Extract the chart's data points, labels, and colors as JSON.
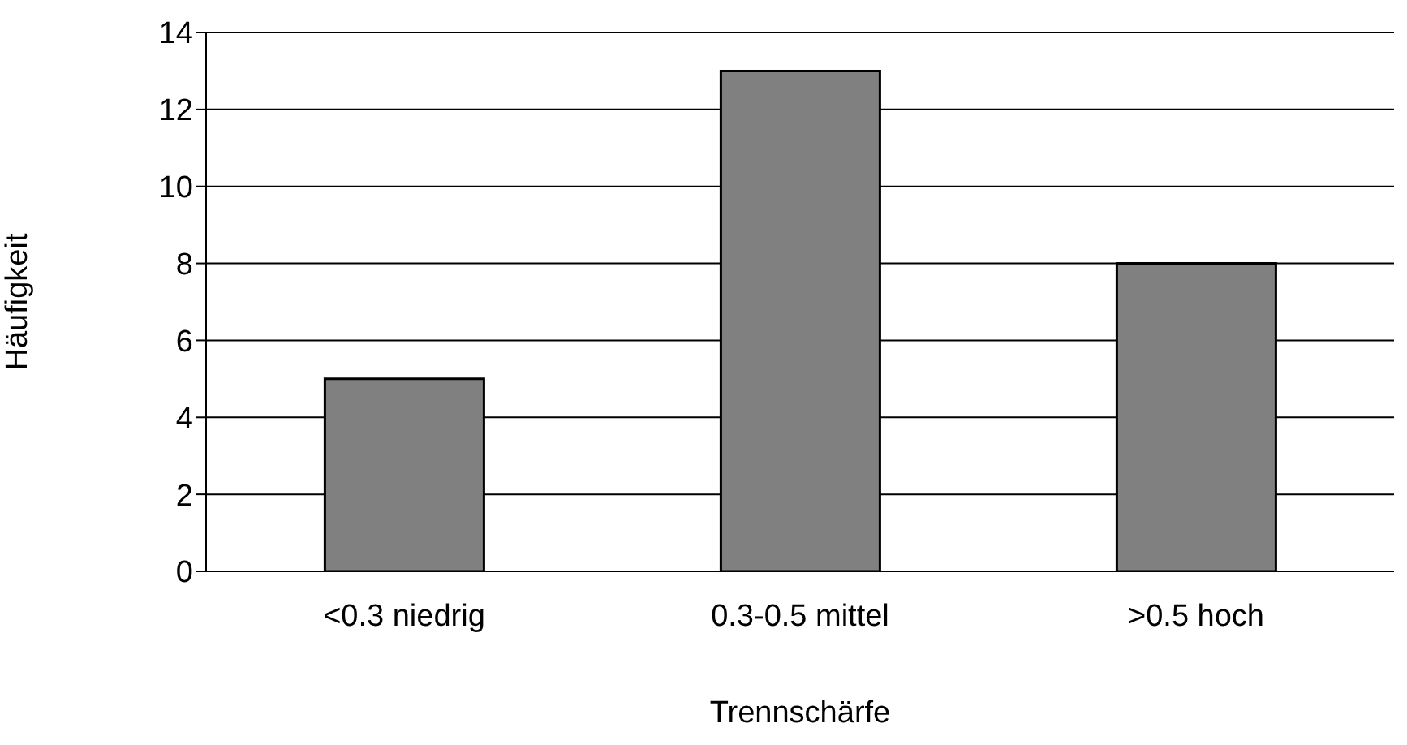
{
  "chart_data": {
    "type": "bar",
    "xlabel": "Trennschärfe",
    "ylabel": "Häufigkeit",
    "categories": [
      "<0.3 niedrig",
      "0.3-0.5 mittel",
      ">0.5 hoch"
    ],
    "values": [
      5,
      13,
      8
    ],
    "color": "#808080",
    "ylim": [
      0,
      14
    ],
    "yticks": [
      0,
      2,
      4,
      6,
      8,
      10,
      12,
      14
    ],
    "grid": "y",
    "legend": false
  }
}
